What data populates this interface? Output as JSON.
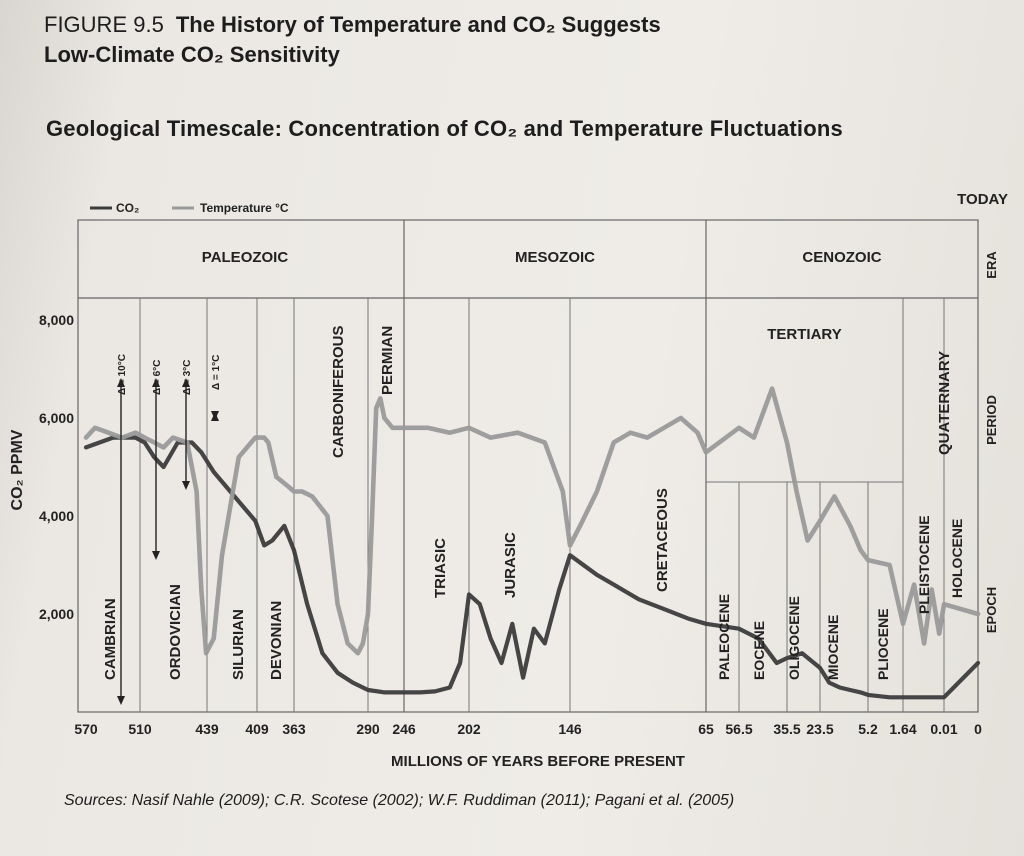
{
  "figure": {
    "number": "FIGURE 9.5",
    "title_line1": "The History of Temperature and CO₂ Suggests",
    "title_line2": "Low-Climate CO₂ Sensitivity"
  },
  "sources": "Sources: Nasif Nahle (2009); C.R. Scotese (2002); W.F. Ruddiman (2011); Pagani et al. (2005)",
  "chart_data": {
    "type": "line",
    "title": "Geological Timescale: Concentration of CO₂ and Temperature Fluctuations",
    "xlabel": "MILLIONS OF YEARS BEFORE PRESENT",
    "ylabel": "CO₂ PPMV",
    "today_label": "TODAY",
    "legend": [
      "CO₂",
      "Temperature °C"
    ],
    "legend_placement": "top-left",
    "grid": false,
    "ylim": [
      0,
      8000
    ],
    "y_ticks": [
      "8,000",
      "6,000",
      "4,000",
      "2,000"
    ],
    "y_tick_values": [
      8000,
      6000,
      4000,
      2000
    ],
    "x_ticks": [
      "570",
      "510",
      "439",
      "409",
      "363",
      "290",
      "246",
      "202",
      "146",
      "65",
      "56.5",
      "35.5",
      "23.5",
      "5.2",
      "1.64",
      "0.01",
      "0"
    ],
    "x_tick_values": [
      570,
      510,
      439,
      409,
      363,
      290,
      246,
      202,
      146,
      65,
      56.5,
      35.5,
      23.5,
      5.2,
      1.64,
      0.01,
      0
    ],
    "row_labels": [
      "ERA",
      "PERIOD",
      "EPOCH"
    ],
    "eras": [
      "PALEOZOIC",
      "MESOZOIC",
      "CENOZOIC"
    ],
    "era_bounds": [
      [
        570,
        246
      ],
      [
        246,
        65
      ],
      [
        65,
        0
      ]
    ],
    "periods": [
      {
        "label": "CAMBRIAN",
        "start": 570,
        "end": 510
      },
      {
        "label": "ORDOVICIAN",
        "start": 510,
        "end": 439
      },
      {
        "label": "SILURIAN",
        "start": 439,
        "end": 409
      },
      {
        "label": "DEVONIAN",
        "start": 409,
        "end": 363
      },
      {
        "label": "CARBONIFEROUS",
        "start": 363,
        "end": 290
      },
      {
        "label": "PERMIAN",
        "start": 290,
        "end": 246
      },
      {
        "label": "TRIASIC",
        "start": 246,
        "end": 202
      },
      {
        "label": "JURASIC",
        "start": 202,
        "end": 146
      },
      {
        "label": "CRETACEOUS",
        "start": 146,
        "end": 65
      },
      {
        "label": "TERTIARY",
        "start": 65,
        "end": 1.64
      },
      {
        "label": "QUATERNARY",
        "start": 1.64,
        "end": 0
      }
    ],
    "epochs": [
      {
        "label": "PALEOCENE",
        "start": 65,
        "end": 56.5
      },
      {
        "label": "EOCENE",
        "start": 56.5,
        "end": 35.5
      },
      {
        "label": "OLIGOCENE",
        "start": 35.5,
        "end": 23.5
      },
      {
        "label": "MIOCENE",
        "start": 23.5,
        "end": 5.2
      },
      {
        "label": "PLIOCENE",
        "start": 5.2,
        "end": 1.64
      },
      {
        "label": "PLEISTOCENE",
        "start": 1.64,
        "end": 0.01
      },
      {
        "label": "HOLOCENE",
        "start": 0.01,
        "end": 0
      }
    ],
    "temp_annotations": [
      "Δ = 10°C",
      "Δ = 6°C",
      "Δ = 3°C",
      "Δ = 1°C"
    ],
    "series": [
      {
        "name": "CO₂",
        "color": "#3c3c3c",
        "x": [
          570,
          555,
          540,
          525,
          515,
          505,
          495,
          485,
          470,
          455,
          445,
          435,
          425,
          410,
          400,
          390,
          375,
          363,
          350,
          335,
          320,
          305,
          290,
          270,
          250,
          235,
          225,
          215,
          208,
          202,
          196,
          190,
          184,
          178,
          172,
          166,
          160,
          152,
          146,
          138,
          130,
          120,
          105,
          90,
          75,
          65,
          56.5,
          48,
          40,
          35.5,
          30,
          23.5,
          20,
          16,
          12,
          8,
          5.2,
          3,
          1.64,
          1,
          0.5,
          0.2,
          0.01,
          0
        ],
        "values": [
          5400,
          5500,
          5600,
          5600,
          5600,
          5500,
          5200,
          5000,
          5500,
          5500,
          5300,
          4900,
          4500,
          3900,
          3400,
          3500,
          3800,
          3300,
          2200,
          1200,
          800,
          600,
          450,
          400,
          400,
          400,
          420,
          500,
          1000,
          2400,
          2200,
          1500,
          1000,
          1800,
          700,
          1700,
          1400,
          2500,
          3200,
          3000,
          2800,
          2600,
          2300,
          2100,
          1900,
          1800,
          1700,
          1500,
          1000,
          1100,
          1200,
          900,
          600,
          500,
          450,
          400,
          350,
          300,
          300,
          300,
          300,
          300,
          300,
          1000
        ]
      },
      {
        "name": "Temperature °C",
        "color": "#9a9a9a",
        "x": [
          570,
          560,
          545,
          530,
          515,
          505,
          495,
          485,
          475,
          460,
          450,
          445,
          440,
          435,
          430,
          420,
          410,
          400,
          395,
          385,
          370,
          363,
          355,
          345,
          330,
          320,
          310,
          300,
          295,
          290,
          285,
          280,
          275,
          270,
          260,
          246,
          230,
          215,
          202,
          190,
          175,
          160,
          150,
          146,
          140,
          130,
          120,
          110,
          100,
          90,
          80,
          70,
          65,
          56.5,
          50,
          42,
          35.5,
          32,
          28,
          23.5,
          18,
          12,
          8,
          5.2,
          3,
          1.64,
          1.2,
          0.8,
          0.5,
          0.2,
          0.01,
          0
        ],
        "values": [
          5600,
          5800,
          5700,
          5600,
          5700,
          5600,
          5500,
          5400,
          5600,
          5500,
          4500,
          2500,
          1200,
          1500,
          3200,
          5200,
          5600,
          5600,
          5500,
          4800,
          4600,
          4500,
          4500,
          4400,
          4000,
          2200,
          1400,
          1200,
          1400,
          2000,
          4000,
          6200,
          6400,
          6000,
          5800,
          5800,
          5800,
          5700,
          5800,
          5600,
          5700,
          5500,
          4500,
          3400,
          3800,
          4500,
          5500,
          5700,
          5600,
          5800,
          6000,
          5700,
          5300,
          5800,
          5600,
          6600,
          5500,
          4500,
          3500,
          3900,
          4400,
          3800,
          3300,
          3100,
          3000,
          1800,
          2600,
          1400,
          2500,
          1600,
          2200,
          2000
        ]
      }
    ]
  }
}
